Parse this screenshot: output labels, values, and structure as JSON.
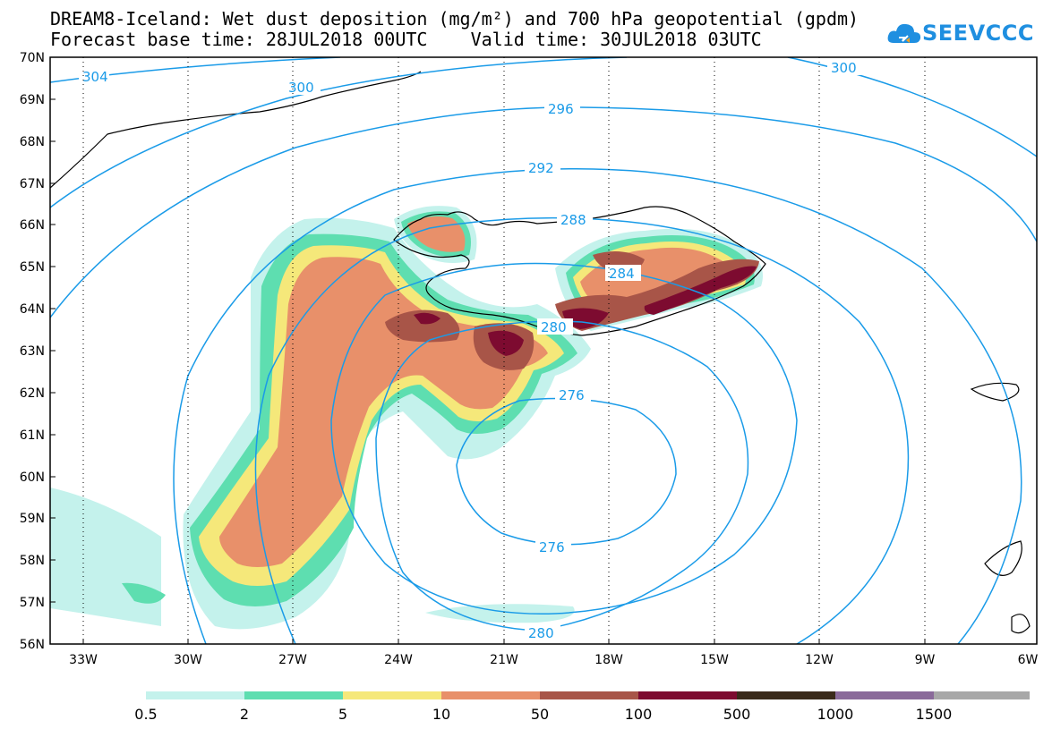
{
  "title_line1": "DREAM8-Iceland: Wet dust deposition (mg/m²) and 700 hPa geopotential (gpdm)",
  "title_line2": "Forecast base time: 28JUL2018 00UTC    Valid time: 30JUL2018 03UTC",
  "logo_text": "SEEVCCC",
  "latitudes": [
    "70N",
    "69N",
    "68N",
    "67N",
    "66N",
    "65N",
    "64N",
    "63N",
    "62N",
    "61N",
    "60N",
    "59N",
    "58N",
    "57N",
    "56N"
  ],
  "longitudes": [
    "33W",
    "30W",
    "27W",
    "24W",
    "21W",
    "18W",
    "15W",
    "12W",
    "9W",
    "6W"
  ],
  "contour_labels": [
    "304",
    "300",
    "300",
    "296",
    "292",
    "288",
    "284",
    "280",
    "276",
    "276",
    "280"
  ],
  "legend_ticks": [
    "0.5",
    "2",
    "5",
    "10",
    "50",
    "100",
    "500",
    "1000",
    "1500"
  ],
  "colors": {
    "contour": "#1a9be8",
    "legend": [
      "#c4f2ec",
      "#5edeb0",
      "#f5e87a",
      "#e8906a",
      "#a85548",
      "#7d0b30",
      "#3a2a1a",
      "#8a6a9a",
      "#a8a8a8"
    ]
  }
}
